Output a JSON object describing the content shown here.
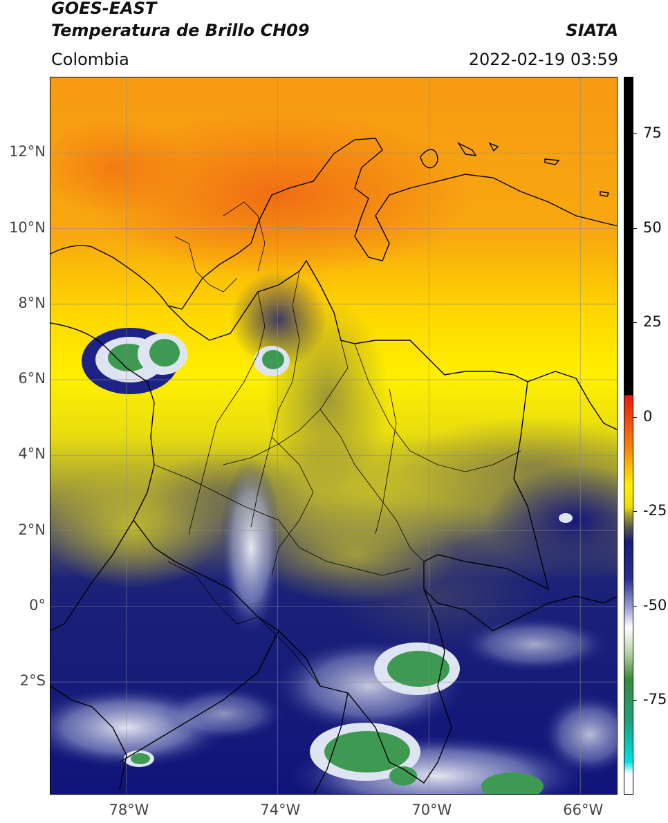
{
  "header": {
    "line1": "GOES-EAST",
    "line2": "Temperatura de Brillo CH09",
    "region": "Colombia",
    "agency": "SIATA",
    "datetime": "2022-02-19 03:59"
  },
  "map": {
    "lon_range": [
      -80,
      -65
    ],
    "lat_range": [
      -5,
      14
    ],
    "lat_ticks": [
      {
        "value": 12,
        "label": "12°N"
      },
      {
        "value": 10,
        "label": "10°N"
      },
      {
        "value": 8,
        "label": "8°N"
      },
      {
        "value": 6,
        "label": "6°N"
      },
      {
        "value": 4,
        "label": "4°N"
      },
      {
        "value": 2,
        "label": "2°N"
      },
      {
        "value": 0,
        "label": "0°"
      },
      {
        "value": -2,
        "label": "2°S"
      }
    ],
    "lon_ticks": [
      {
        "value": -78,
        "label": "78°W"
      },
      {
        "value": -74,
        "label": "74°W"
      },
      {
        "value": -70,
        "label": "70°W"
      },
      {
        "value": -66,
        "label": "66°W"
      }
    ],
    "colors": {
      "warm_top": "#f07814",
      "orange": "#f8a010",
      "yellow": "#fff000",
      "olive": "#b8b028",
      "gray": "#6c6c5c",
      "navy": "#10147a",
      "cloud_white": "#e4e8f0",
      "core_green": "#3c9c4c",
      "border": "#000000"
    }
  },
  "colorbar": {
    "range": [
      -100,
      90
    ],
    "ticks": [
      {
        "value": 75,
        "label": "75"
      },
      {
        "value": 50,
        "label": "50"
      },
      {
        "value": 25,
        "label": "25"
      },
      {
        "value": 0,
        "label": "0"
      },
      {
        "value": -25,
        "label": "-25"
      },
      {
        "value": -50,
        "label": "-50"
      },
      {
        "value": -75,
        "label": "-75"
      }
    ]
  }
}
